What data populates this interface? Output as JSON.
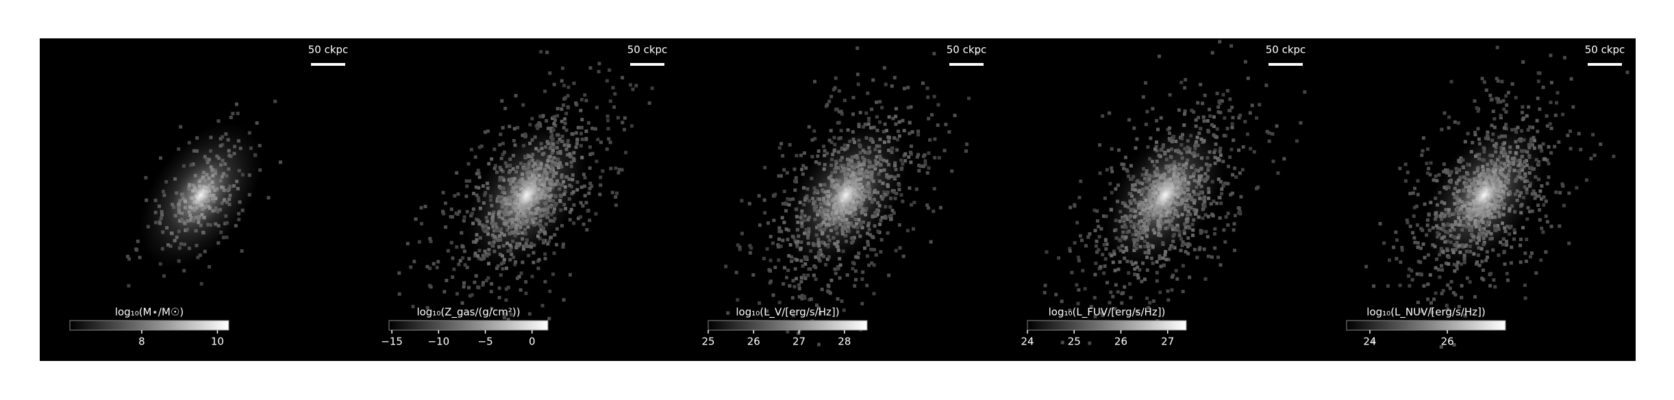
{
  "panels": [
    {
      "scale_bar_label": "50 ckpc",
      "colorbar": {
        "label": "log₁₀(M⋆/M☉)",
        "lim": [
          6.1,
          10.3
        ],
        "ticks": [
          8,
          10
        ]
      }
    },
    {
      "scale_bar_label": "50 ckpc",
      "colorbar": {
        "label": "log₁₀(Z_gas/(g/cm²))",
        "lim": [
          -15.3,
          1.7
        ],
        "ticks": [
          {
            "value": -15,
            "label": "−15"
          },
          {
            "value": -10,
            "label": "−10"
          },
          {
            "value": -5,
            "label": "−5"
          },
          0
        ]
      }
    },
    {
      "scale_bar_label": "50 ckpc",
      "colorbar": {
        "label": "log₁₀(L_V/[erg/s/Hz])",
        "lim": [
          25,
          28.5
        ],
        "ticks": [
          25,
          26,
          27,
          28
        ]
      }
    },
    {
      "scale_bar_label": "50 ckpc",
      "colorbar": {
        "label": "log₁₀(L_FUV/[erg/s/Hz])",
        "lim": [
          24,
          27.4
        ],
        "ticks": [
          24,
          25,
          26,
          27
        ]
      }
    },
    {
      "scale_bar_label": "50 ckpc",
      "colorbar": {
        "label": "log₁₀(L_NUV/[erg/s/Hz])",
        "lim": [
          23.4,
          27.5
        ],
        "ticks": [
          24,
          26
        ]
      }
    }
  ]
}
